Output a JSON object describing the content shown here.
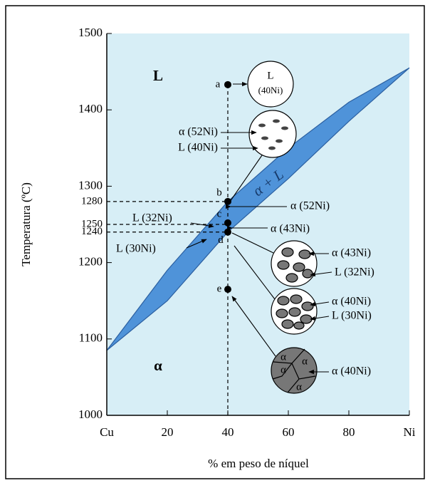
{
  "chart_data": {
    "type": "phase-diagram",
    "x_label": "% em peso de níquel",
    "y_label": "Temperatura (ºC)",
    "xlim": [
      0,
      100
    ],
    "ylim": [
      1000,
      1500
    ],
    "xticks": [
      {
        "value": 0,
        "label": "Cu"
      },
      20,
      40,
      60,
      80,
      {
        "value": 100,
        "label": "Ni"
      }
    ],
    "yticks": [
      1000,
      1100,
      1200,
      1240,
      1250,
      1280,
      1300,
      1400,
      1500
    ],
    "background_color": "#d7eef6",
    "band_color": "#4f93d9",
    "boundaries": {
      "x": [
        0,
        20,
        40,
        60,
        80,
        100
      ],
      "upper": [
        1085,
        1190,
        1280,
        1350,
        1410,
        1455
      ],
      "lower": [
        1085,
        1150,
        1240,
        1310,
        1385,
        1455
      ]
    },
    "points": {
      "labels": [
        "a",
        "b",
        "c",
        "d",
        "e"
      ],
      "x": [
        40,
        40,
        40,
        40,
        40
      ],
      "y": [
        1433,
        1280,
        1252,
        1240,
        1165
      ]
    },
    "regions": [
      "L",
      "α",
      "α + L"
    ],
    "annotations": [
      "L",
      "(40Ni)",
      "α (52Ni)",
      "L (40Ni)",
      "α (52Ni)",
      "L (32Ni)",
      "α (43Ni)",
      "L (30Ni)",
      "α (43Ni)",
      "L (32Ni)",
      "α (40Ni)",
      "L (30Ni)",
      "α (40Ni)"
    ],
    "grain_label": "α"
  }
}
